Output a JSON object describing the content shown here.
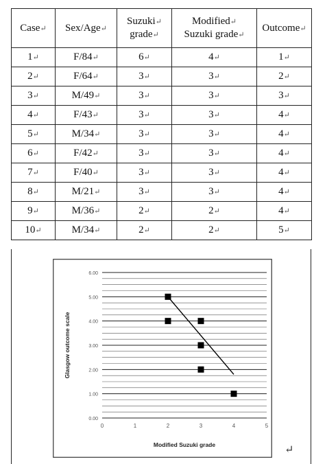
{
  "table": {
    "headers": [
      [
        "Case"
      ],
      [
        "Sex/Age"
      ],
      [
        "Suzuki",
        "grade"
      ],
      [
        "Modified",
        "Suzuki grade"
      ],
      [
        "Outcome"
      ]
    ],
    "paragraph_mark": "↵",
    "rows": [
      [
        "1",
        "F/84",
        "6",
        "4",
        "1"
      ],
      [
        "2",
        "F/64",
        "3",
        "3",
        "2"
      ],
      [
        "3",
        "M/49",
        "3",
        "3",
        "3"
      ],
      [
        "4",
        "F/43",
        "3",
        "3",
        "4"
      ],
      [
        "5",
        "M/34",
        "3",
        "3",
        "4"
      ],
      [
        "6",
        "F/42",
        "3",
        "3",
        "4"
      ],
      [
        "7",
        "F/40",
        "3",
        "3",
        "4"
      ],
      [
        "8",
        "M/21",
        "3",
        "3",
        "4"
      ],
      [
        "9",
        "M/36",
        "2",
        "2",
        "4"
      ],
      [
        "10",
        "M/34",
        "2",
        "2",
        "5"
      ]
    ]
  },
  "chart_data": {
    "type": "scatter",
    "xlabel": "Modified Suzuki grade",
    "ylabel": "Glasgow outcome scale",
    "xlim": [
      0,
      5
    ],
    "ylim": [
      0,
      6
    ],
    "x_ticks": [
      "0",
      "1",
      "2",
      "3",
      "4",
      "5"
    ],
    "y_ticks": [
      "0.00",
      "1.00",
      "2.00",
      "3.00",
      "4.00",
      "5.00",
      "6.00"
    ],
    "grid": "horizontal",
    "points": [
      {
        "x": 2,
        "y": 5
      },
      {
        "x": 2,
        "y": 4
      },
      {
        "x": 3,
        "y": 4
      },
      {
        "x": 3,
        "y": 3
      },
      {
        "x": 3,
        "y": 2
      },
      {
        "x": 4,
        "y": 1
      }
    ],
    "trendline": [
      [
        2,
        5
      ],
      [
        4,
        1.8
      ]
    ],
    "marker_color": "#000000",
    "trendline_color": "#000000"
  },
  "panel": {
    "return_mark": "↵"
  }
}
